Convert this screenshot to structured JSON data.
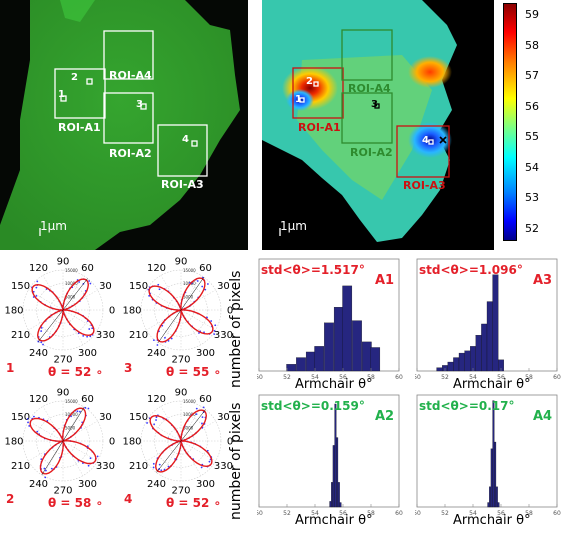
{
  "panels": {
    "green": {
      "scale_bar_label": "1μm",
      "roi_boxes": [
        {
          "label": "ROI-A1",
          "number": "1"
        },
        {
          "label": "ROI-A4",
          "number": "2"
        },
        {
          "label": "ROI-A2",
          "number": "3"
        },
        {
          "label": "ROI-A3",
          "number": "4"
        }
      ]
    },
    "map": {
      "scale_bar_label": "1μm",
      "roi_boxes": [
        {
          "label": "ROI-A1",
          "number": "2",
          "color": "#cc1111"
        },
        {
          "label": "ROI-A4",
          "number": "",
          "color": "#2e8b2e"
        },
        {
          "label": "ROI-A2",
          "number": "3",
          "color": "#2e8b2e"
        },
        {
          "label": "ROI-A3",
          "number": "4",
          "color": "#cc1111"
        }
      ],
      "extra_marks": [
        "1"
      ],
      "colorbar_ticks": [
        "59",
        "58",
        "57",
        "56",
        "55",
        "54",
        "53",
        "52"
      ]
    }
  },
  "polar_plots": [
    {
      "index": "1",
      "theta_label": "θ = 52 ∘",
      "angle_deg": 52
    },
    {
      "index": "3",
      "theta_label": "θ = 55 ∘",
      "angle_deg": 55
    },
    {
      "index": "2",
      "theta_label": "θ = 58 ∘",
      "angle_deg": 58
    },
    {
      "index": "4",
      "theta_label": "θ = 52 ∘",
      "angle_deg": 52
    }
  ],
  "polar_axis": {
    "angle_labels": [
      "90",
      "60",
      "30",
      "0",
      "330",
      "300",
      "270",
      "240",
      "210",
      "180",
      "150",
      "120"
    ],
    "radial_labels": [
      "15000",
      "10000",
      "5000"
    ]
  },
  "histogram_axis_label_y": "number of pixels",
  "histogram_axis_label_x": "Armchair θ°",
  "chart_data": [
    {
      "type": "bar",
      "id": "A1",
      "title": "A1",
      "annotation": "std<θ>=1.517°",
      "xlabel": "Armchair θ°",
      "ylabel": "number of pixels",
      "xlim": [
        50,
        60
      ],
      "xticks": [
        "50",
        "52",
        "54",
        "56",
        "58",
        "60"
      ],
      "bin_width": 0.67,
      "bins": [
        52.3,
        53.0,
        53.7,
        54.3,
        55.0,
        55.7,
        56.3,
        57.0,
        57.7,
        58.3
      ],
      "values": [
        0.06,
        0.12,
        0.17,
        0.22,
        0.43,
        0.57,
        0.76,
        0.45,
        0.26,
        0.21
      ]
    },
    {
      "type": "bar",
      "id": "A3",
      "title": "A3",
      "annotation": "std<θ>=1.096°",
      "xlabel": "Armchair θ°",
      "ylabel": "number of pixels",
      "xlim": [
        50,
        60
      ],
      "xticks": [
        "50",
        "52",
        "54",
        "56",
        "58",
        "60"
      ],
      "bin_width": 0.4,
      "bins": [
        51.6,
        52.0,
        52.4,
        52.8,
        53.2,
        53.6,
        54.0,
        54.4,
        54.8,
        55.2,
        55.6,
        56.0
      ],
      "values": [
        0.03,
        0.05,
        0.08,
        0.12,
        0.16,
        0.18,
        0.22,
        0.32,
        0.42,
        0.62,
        0.86,
        0.1
      ]
    },
    {
      "type": "bar",
      "id": "A2",
      "title": "A2",
      "annotation": "std<θ>=0.159°",
      "xlabel": "Armchair θ°",
      "ylabel": "number of pixels",
      "xlim": [
        50,
        60
      ],
      "xticks": [
        "50",
        "52",
        "54",
        "56",
        "58",
        "60"
      ],
      "bin_width": 0.12,
      "bins": [
        55.1,
        55.22,
        55.34,
        55.46,
        55.58,
        55.7,
        55.82
      ],
      "values": [
        0.05,
        0.22,
        0.55,
        0.92,
        0.62,
        0.22,
        0.04
      ]
    },
    {
      "type": "bar",
      "id": "A4",
      "title": "A4",
      "annotation": "std<θ>=0.17°",
      "xlabel": "Armchair θ°",
      "ylabel": "number of pixels",
      "xlim": [
        50,
        60
      ],
      "xticks": [
        "50",
        "52",
        "54",
        "56",
        "58",
        "60"
      ],
      "bin_width": 0.12,
      "bins": [
        55.1,
        55.22,
        55.34,
        55.46,
        55.58,
        55.7,
        55.82
      ],
      "values": [
        0.04,
        0.18,
        0.52,
        0.95,
        0.58,
        0.18,
        0.04
      ]
    }
  ],
  "colors": {
    "red_text": "#e4202a",
    "green_text": "#22b14c",
    "bar_fill": "#262680",
    "polar_red": "#e41a1c",
    "polar_blue": "#3a3aff"
  }
}
